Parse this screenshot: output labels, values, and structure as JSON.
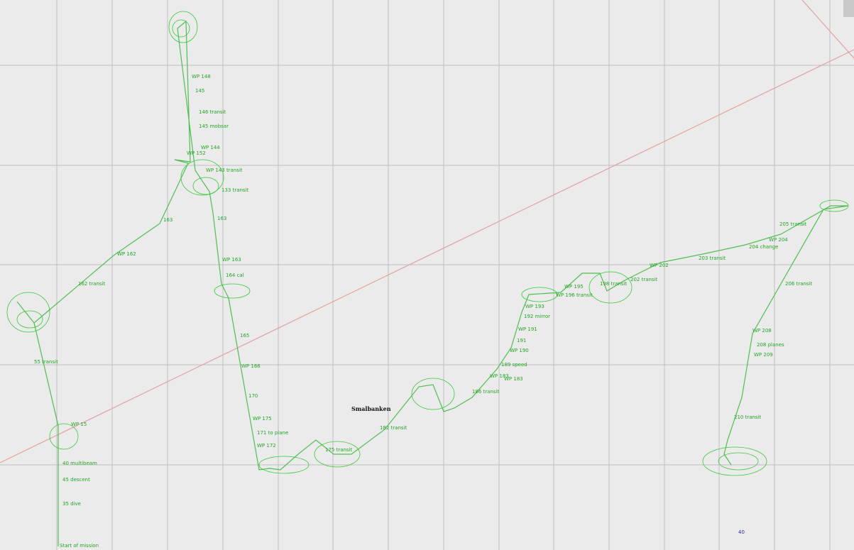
{
  "map": {
    "place_label": "Smalbanken",
    "corner_label": "40",
    "colors": {
      "background": "#ebebeb",
      "grid": "#bfbfbf",
      "track": "#4cc04c",
      "boundary": "#e3a0a0",
      "label": "#1fa81f"
    },
    "waypoint_labels": [
      "WP 148",
      "145",
      "146 transit",
      "145 mobsar",
      "WP 144",
      "WP 143 transit",
      "133 transit",
      "163",
      "WP 162",
      "162 transit",
      "55 transit",
      "WP 15",
      "40 multibeam",
      "45 descent",
      "35 dive",
      "Start of mission",
      "163",
      "WP 163",
      "164 cal",
      "165",
      "WP 166",
      "170",
      "WP 175",
      "171 to plane",
      "WP 172",
      "175 transit",
      "182 transit",
      "WP 183",
      "186 transit",
      "189 speed",
      "WP 183",
      "WP 190",
      "191",
      "WP 191",
      "192 mirror",
      "WP 193",
      "WP 195",
      "WP 196 transit",
      "198 transit",
      "202 transit",
      "WP 202",
      "203 transit",
      "204 change",
      "WP 204",
      "205 transit",
      "206 transit",
      "WP 208",
      "208 planes",
      "WP 209",
      "210 transit",
      "WP 152"
    ]
  }
}
